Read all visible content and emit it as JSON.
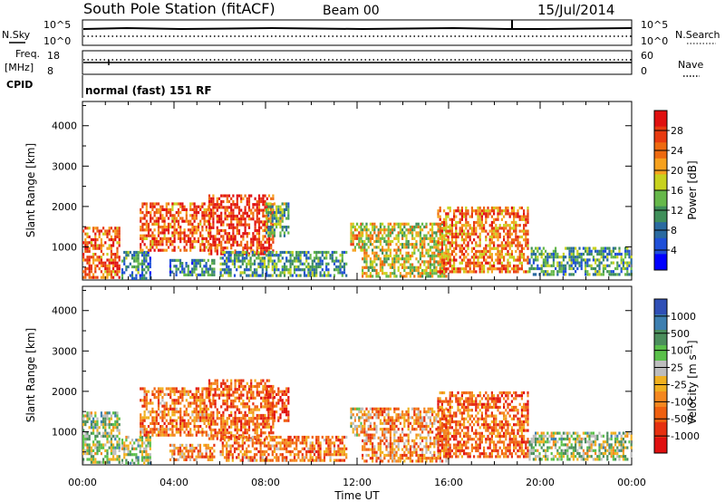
{
  "header": {
    "station": "South Pole Station (fitACF)",
    "beam": "Beam 00",
    "date": "15/Jul/2014"
  },
  "status_panels": {
    "nsky_label": "N.Sky",
    "nsky_ticks": [
      "10^5",
      "10^0"
    ],
    "nsearch_label": "N.Search",
    "nsearch_ticks": [
      "10^5",
      "10^0"
    ],
    "freq_label": "Freq.",
    "freq_unit": "[MHz]",
    "freq_ticks": [
      "18",
      "8"
    ],
    "nave_label": "Nave",
    "nave_ticks": [
      "60",
      "0"
    ],
    "cpid_label": "CPID",
    "cpid_value": "normal (fast) 151 RF"
  },
  "chart_data": [
    {
      "type": "heatmap",
      "name": "power",
      "ylabel": "Slant Range [km]",
      "yticks": [
        "1000",
        "2000",
        "3000",
        "4000"
      ],
      "ylim": [
        180,
        4600
      ],
      "xlim_hours": [
        0,
        24
      ],
      "colorbar": {
        "label": "Power [dB]",
        "ticks": [
          "4",
          "8",
          "12",
          "16",
          "20",
          "24",
          "28"
        ],
        "colors": [
          "#0000ff",
          "#1f4fd8",
          "#2a6aa0",
          "#3f8f5a",
          "#66b84a",
          "#c8d21e",
          "#f6a11e",
          "#ee6a10",
          "#e83a10",
          "#e01010"
        ]
      },
      "echo_regions": [
        {
          "t": [
            0.0,
            1.6
          ],
          "r": [
            250,
            1500
          ],
          "level": 0.8
        },
        {
          "t": [
            1.7,
            3.0
          ],
          "r": [
            250,
            900
          ],
          "level": 0.3
        },
        {
          "t": [
            2.5,
            5.6
          ],
          "r": [
            900,
            2100
          ],
          "level": 0.8
        },
        {
          "t": [
            3.8,
            5.8
          ],
          "r": [
            300,
            700
          ],
          "level": 0.3
        },
        {
          "t": [
            5.5,
            8.3
          ],
          "r": [
            800,
            2300
          ],
          "level": 0.85
        },
        {
          "t": [
            6.0,
            11.5
          ],
          "r": [
            300,
            900
          ],
          "level": 0.35
        },
        {
          "t": [
            8.0,
            9.0
          ],
          "r": [
            1300,
            2100
          ],
          "level": 0.4
        },
        {
          "t": [
            11.7,
            12.2
          ],
          "r": [
            900,
            1600
          ],
          "level": 0.65
        },
        {
          "t": [
            12.2,
            16.0
          ],
          "r": [
            300,
            1600
          ],
          "level": 0.55
        },
        {
          "t": [
            15.5,
            19.5
          ],
          "r": [
            400,
            2000
          ],
          "level": 0.75
        },
        {
          "t": [
            19.5,
            24.0
          ],
          "r": [
            300,
            1000
          ],
          "level": 0.35
        }
      ]
    },
    {
      "type": "heatmap",
      "name": "velocity",
      "ylabel": "Slant Range [km]",
      "yticks": [
        "1000",
        "2000",
        "3000",
        "4000"
      ],
      "ylim": [
        180,
        4600
      ],
      "xlabel": "Time UT",
      "xticks": [
        "00:00",
        "04:00",
        "08:00",
        "12:00",
        "16:00",
        "20:00",
        "00:00"
      ],
      "xlim_hours": [
        0,
        24
      ],
      "colorbar": {
        "label": "Velocity [m s⁻¹]",
        "ticks": [
          "1000",
          "500",
          "100",
          "25",
          "-25",
          "-100",
          "-500",
          "-1000"
        ],
        "colors": [
          "#2f4fb6",
          "#3d7fb0",
          "#4b8e5c",
          "#5ac04a",
          "#bdbdbd",
          "#f0b020",
          "#f58820",
          "#f06010",
          "#e63010",
          "#e01010"
        ]
      },
      "echo_regions": [
        {
          "t": [
            0.0,
            1.6
          ],
          "r": [
            250,
            1500
          ],
          "level": 0.4
        },
        {
          "t": [
            1.7,
            3.0
          ],
          "r": [
            250,
            900
          ],
          "level": 0.4
        },
        {
          "t": [
            2.5,
            5.6
          ],
          "r": [
            900,
            2100
          ],
          "level": 0.7
        },
        {
          "t": [
            3.8,
            5.8
          ],
          "r": [
            300,
            700
          ],
          "level": 0.65
        },
        {
          "t": [
            5.5,
            8.3
          ],
          "r": [
            800,
            2300
          ],
          "level": 0.75
        },
        {
          "t": [
            6.0,
            11.5
          ],
          "r": [
            300,
            900
          ],
          "level": 0.7
        },
        {
          "t": [
            8.0,
            9.0
          ],
          "r": [
            1300,
            2100
          ],
          "level": 0.82
        },
        {
          "t": [
            11.7,
            12.2
          ],
          "r": [
            900,
            1600
          ],
          "level": 0.5
        },
        {
          "t": [
            12.2,
            16.0
          ],
          "r": [
            300,
            1600
          ],
          "level": 0.65
        },
        {
          "t": [
            15.5,
            19.5
          ],
          "r": [
            400,
            2000
          ],
          "level": 0.75
        },
        {
          "t": [
            19.5,
            24.0
          ],
          "r": [
            300,
            1000
          ],
          "level": 0.4
        }
      ]
    }
  ]
}
